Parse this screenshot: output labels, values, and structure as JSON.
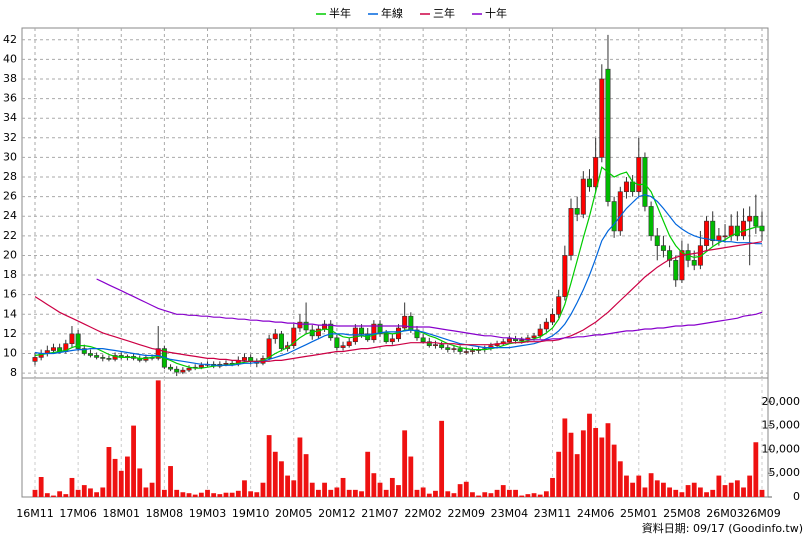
{
  "chart_data": {
    "type": "candlestick",
    "categories": [
      "16M11",
      null,
      null,
      null,
      null,
      null,
      null,
      "17M06",
      null,
      null,
      null,
      null,
      null,
      null,
      "18M01",
      null,
      null,
      null,
      null,
      null,
      null,
      "18M08",
      null,
      null,
      null,
      null,
      null,
      null,
      "19M03",
      null,
      null,
      null,
      null,
      null,
      null,
      "19M10",
      null,
      null,
      null,
      null,
      null,
      null,
      "20M05",
      null,
      null,
      null,
      null,
      null,
      null,
      "20M12",
      null,
      null,
      null,
      null,
      null,
      null,
      "21M07",
      null,
      null,
      null,
      null,
      null,
      null,
      "22M02",
      null,
      null,
      null,
      null,
      null,
      null,
      "22M09",
      null,
      null,
      null,
      null,
      null,
      null,
      "23M04",
      null,
      null,
      null,
      null,
      null,
      null,
      "23M11",
      null,
      null,
      null,
      null,
      null,
      null,
      "24M06",
      null,
      null,
      null,
      null,
      null,
      null,
      "25M01",
      null,
      null,
      null,
      null,
      null,
      null,
      "25M08",
      null,
      null,
      null,
      null,
      null,
      null,
      "26M03",
      null,
      null,
      null,
      null,
      null,
      "26M09"
    ],
    "open": [
      9.2,
      9.6,
      10.0,
      10.3,
      10.6,
      10.2,
      11.0,
      12.0,
      10.5,
      10.0,
      9.8,
      9.6,
      9.5,
      9.4,
      9.8,
      9.6,
      9.7,
      9.5,
      9.3,
      9.6,
      9.5,
      10.5,
      8.6,
      8.4,
      8.1,
      8.3,
      8.5,
      8.6,
      8.8,
      8.9,
      8.7,
      8.9,
      9.0,
      8.9,
      9.3,
      9.6,
      9.2,
      9.0,
      9.5,
      11.5,
      12.0,
      10.5,
      10.8,
      12.6,
      13.2,
      12.4,
      11.8,
      12.5,
      13.0,
      11.6,
      10.6,
      10.8,
      11.2,
      12.6,
      12.0,
      11.4,
      13.0,
      12.0,
      11.2,
      11.5,
      12.6,
      13.8,
      12.4,
      11.6,
      11.2,
      10.8,
      10.9,
      10.6,
      10.4,
      10.5,
      10.2,
      10.2,
      10.3,
      10.4,
      10.5,
      10.8,
      11.0,
      11.2,
      11.5,
      11.3,
      11.4,
      11.6,
      11.8,
      12.5,
      13.2,
      14.0,
      15.8,
      20.0,
      24.8,
      24.2,
      27.8,
      27.0,
      30.0,
      39.0,
      25.5,
      22.5,
      26.5,
      27.5,
      26.5,
      30.0,
      25.0,
      22.0,
      21.0,
      20.5,
      19.5,
      17.5,
      20.5,
      19.5,
      19.0,
      21.0,
      23.5,
      21.5,
      22.0,
      22.0,
      23.0,
      22.0,
      23.5,
      24.0,
      23.0
    ],
    "high": [
      10.0,
      10.4,
      10.8,
      11.0,
      11.0,
      11.4,
      12.8,
      12.4,
      10.9,
      10.4,
      10.1,
      9.9,
      9.8,
      10.1,
      10.1,
      9.9,
      10.0,
      9.8,
      9.9,
      9.9,
      12.8,
      10.8,
      8.9,
      8.7,
      8.6,
      8.8,
      8.9,
      9.1,
      9.2,
      9.2,
      9.2,
      9.3,
      9.3,
      9.7,
      10.0,
      9.9,
      9.5,
      9.8,
      11.9,
      12.5,
      12.3,
      11.2,
      13.0,
      14.0,
      15.2,
      12.9,
      12.9,
      13.4,
      13.4,
      11.9,
      11.2,
      11.6,
      13.0,
      13.0,
      12.6,
      13.4,
      13.4,
      12.4,
      12.0,
      13.0,
      15.2,
      14.2,
      12.8,
      12.0,
      11.6,
      11.3,
      11.2,
      10.9,
      10.8,
      10.8,
      10.6,
      10.6,
      10.7,
      10.8,
      11.1,
      11.3,
      11.5,
      11.8,
      11.8,
      11.7,
      11.9,
      12.1,
      13.0,
      13.6,
      14.6,
      16.5,
      21.0,
      25.8,
      26.0,
      28.6,
      28.8,
      32.0,
      39.5,
      42.5,
      26.0,
      27.0,
      28.0,
      28.2,
      32.0,
      30.5,
      25.5,
      22.8,
      22.0,
      21.0,
      20.0,
      21.5,
      21.2,
      20.5,
      22.5,
      24.0,
      24.5,
      22.8,
      23.2,
      24.2,
      24.5,
      24.8,
      25.0,
      26.2,
      24.5
    ],
    "low": [
      8.8,
      9.3,
      9.7,
      10.0,
      10.0,
      10.0,
      10.6,
      10.2,
      9.8,
      9.6,
      9.4,
      9.2,
      9.2,
      9.2,
      9.4,
      9.3,
      9.3,
      9.1,
      9.1,
      9.3,
      9.3,
      8.4,
      8.2,
      7.7,
      7.9,
      8.1,
      8.3,
      8.4,
      8.6,
      8.5,
      8.5,
      8.7,
      8.7,
      8.7,
      9.0,
      8.9,
      8.6,
      8.8,
      9.3,
      11.0,
      10.2,
      10.2,
      10.5,
      12.2,
      12.0,
      11.4,
      11.5,
      12.2,
      11.3,
      10.3,
      10.3,
      10.6,
      10.9,
      11.6,
      11.2,
      11.1,
      11.7,
      11.0,
      10.9,
      11.2,
      12.3,
      12.1,
      11.3,
      11.0,
      10.6,
      10.5,
      10.4,
      10.1,
      10.1,
      9.9,
      9.9,
      9.9,
      10.0,
      10.1,
      10.3,
      10.5,
      10.8,
      11.0,
      11.0,
      11.0,
      11.1,
      11.3,
      11.5,
      12.2,
      12.9,
      13.6,
      15.4,
      19.5,
      23.5,
      23.8,
      26.5,
      26.5,
      29.5,
      25.0,
      21.8,
      22.0,
      25.8,
      26.0,
      26.0,
      24.5,
      21.5,
      19.5,
      19.8,
      18.8,
      16.8,
      17.2,
      18.8,
      18.5,
      18.6,
      20.5,
      21.0,
      21.0,
      21.3,
      21.5,
      21.5,
      21.6,
      19.0,
      22.2,
      21.5
    ],
    "close": [
      9.6,
      10.0,
      10.3,
      10.6,
      10.2,
      11.0,
      12.0,
      10.5,
      10.0,
      9.8,
      9.6,
      9.5,
      9.4,
      9.8,
      9.6,
      9.7,
      9.5,
      9.3,
      9.6,
      9.5,
      10.5,
      8.6,
      8.4,
      8.1,
      8.3,
      8.5,
      8.6,
      8.8,
      8.9,
      8.7,
      8.9,
      9.0,
      8.9,
      9.3,
      9.6,
      9.2,
      9.0,
      9.5,
      11.5,
      12.0,
      10.5,
      10.8,
      12.6,
      13.2,
      12.4,
      11.8,
      12.5,
      13.0,
      11.6,
      10.6,
      10.8,
      11.2,
      12.6,
      12.0,
      11.4,
      13.0,
      12.0,
      11.2,
      11.5,
      12.6,
      13.8,
      12.4,
      11.6,
      11.2,
      10.8,
      10.9,
      10.6,
      10.4,
      10.5,
      10.2,
      10.2,
      10.3,
      10.4,
      10.5,
      10.8,
      11.0,
      11.2,
      11.5,
      11.3,
      11.4,
      11.6,
      11.8,
      12.5,
      13.2,
      14.0,
      15.8,
      20.0,
      24.8,
      24.2,
      27.8,
      27.0,
      30.0,
      38.0,
      25.5,
      22.5,
      26.5,
      27.5,
      26.5,
      30.0,
      25.0,
      22.0,
      21.0,
      20.5,
      19.5,
      17.5,
      20.5,
      19.5,
      19.0,
      21.0,
      23.5,
      21.5,
      22.0,
      22.0,
      23.0,
      22.0,
      23.5,
      24.0,
      23.0,
      22.5
    ],
    "volume": [
      1500,
      4200,
      800,
      300,
      1200,
      600,
      4000,
      1500,
      2500,
      1800,
      1000,
      2000,
      10500,
      8000,
      5500,
      8500,
      15000,
      6000,
      2000,
      3000,
      24500,
      1500,
      6500,
      1500,
      1000,
      800,
      500,
      900,
      1500,
      800,
      600,
      900,
      900,
      1300,
      3500,
      1200,
      1000,
      3000,
      13000,
      9500,
      7500,
      4500,
      3500,
      12500,
      9000,
      3000,
      1500,
      3000,
      1500,
      2000,
      4000,
      1500,
      1500,
      1200,
      9500,
      5000,
      3000,
      1500,
      4000,
      2500,
      14000,
      8500,
      1500,
      2000,
      700,
      1300,
      16000,
      1200,
      800,
      2700,
      3200,
      1000,
      300,
      1000,
      800,
      1500,
      2500,
      1500,
      1500,
      300,
      600,
      800,
      500,
      1200,
      4000,
      9500,
      16500,
      13500,
      9000,
      14000,
      17500,
      14500,
      12500,
      15500,
      11000,
      7500,
      4500,
      3000,
      4500,
      2000,
      5000,
      3500,
      3000,
      2000,
      1500,
      1000,
      2500,
      3000,
      2000,
      1000,
      1500,
      4500,
      2500,
      3000,
      3500,
      2000,
      4500,
      11500,
      1500
    ],
    "series": [
      {
        "name": "半年",
        "color": "#00cc00",
        "values": [
          9.8,
          9.9,
          10.0,
          10.1,
          10.2,
          10.3,
          10.6,
          10.8,
          10.8,
          10.7,
          10.5,
          10.2,
          9.9,
          9.7,
          9.6,
          9.6,
          9.6,
          9.5,
          9.5,
          9.6,
          9.7,
          9.5,
          9.3,
          9.0,
          8.8,
          8.6,
          8.5,
          8.5,
          8.6,
          8.7,
          8.8,
          8.8,
          8.9,
          9.0,
          9.1,
          9.2,
          9.2,
          9.3,
          9.6,
          10.0,
          10.3,
          10.6,
          11.1,
          11.6,
          12.0,
          12.2,
          12.3,
          12.5,
          12.4,
          12.0,
          11.7,
          11.6,
          11.7,
          11.8,
          11.7,
          11.9,
          12.1,
          12.1,
          12.0,
          12.1,
          12.4,
          12.4,
          12.3,
          12.1,
          11.8,
          11.6,
          11.3,
          11.0,
          10.8,
          10.6,
          10.5,
          10.4,
          10.4,
          10.4,
          10.5,
          10.6,
          10.8,
          11.0,
          11.1,
          11.2,
          11.3,
          11.5,
          11.7,
          12.1,
          12.6,
          13.5,
          15.0,
          17.2,
          19.5,
          21.8,
          24.0,
          26.5,
          29.0,
          28.5,
          28.0,
          28.3,
          28.5,
          27.5,
          27.2,
          27.3,
          26.5,
          25.0,
          23.5,
          22.0,
          21.0,
          20.3,
          20.0,
          19.8,
          19.9,
          20.4,
          20.9,
          21.3,
          21.6,
          22.0,
          22.3,
          22.5,
          22.7,
          22.9,
          22.9
        ]
      },
      {
        "name": "年線",
        "color": "#0066dd",
        "values": [
          10.1,
          10.0,
          10.0,
          10.0,
          10.1,
          10.2,
          10.3,
          10.4,
          10.4,
          10.5,
          10.5,
          10.5,
          10.4,
          10.3,
          10.2,
          10.1,
          10.0,
          9.9,
          9.8,
          9.8,
          9.8,
          9.6,
          9.4,
          9.3,
          9.2,
          9.1,
          9.0,
          8.9,
          8.9,
          8.8,
          8.8,
          8.8,
          8.8,
          8.9,
          9.0,
          9.0,
          9.1,
          9.2,
          9.4,
          9.6,
          9.8,
          10.0,
          10.3,
          10.6,
          10.9,
          11.2,
          11.5,
          11.8,
          12.0,
          12.0,
          12.0,
          11.9,
          11.9,
          11.9,
          11.9,
          12.0,
          12.1,
          12.2,
          12.2,
          12.2,
          12.3,
          12.4,
          12.3,
          12.2,
          12.0,
          11.8,
          11.6,
          11.4,
          11.2,
          11.0,
          10.9,
          10.8,
          10.7,
          10.6,
          10.6,
          10.6,
          10.6,
          10.6,
          10.7,
          10.8,
          10.9,
          11.0,
          11.2,
          11.5,
          11.8,
          12.3,
          13.0,
          14.0,
          15.2,
          16.5,
          18.0,
          19.7,
          21.5,
          22.5,
          23.2,
          24.0,
          24.8,
          25.4,
          26.0,
          26.2,
          26.0,
          25.5,
          24.8,
          24.0,
          23.2,
          22.7,
          22.3,
          22.0,
          21.8,
          21.7,
          21.6,
          21.5,
          21.4,
          21.4,
          21.3,
          21.3,
          21.3,
          21.2,
          21.2
        ]
      },
      {
        "name": "三年",
        "color": "#cc0044",
        "values": [
          15.8,
          15.4,
          15.0,
          14.6,
          14.2,
          13.9,
          13.6,
          13.3,
          13.0,
          12.7,
          12.4,
          12.1,
          11.9,
          11.7,
          11.5,
          11.3,
          11.1,
          10.9,
          10.7,
          10.5,
          10.4,
          10.2,
          10.1,
          10.0,
          9.9,
          9.8,
          9.7,
          9.6,
          9.5,
          9.5,
          9.4,
          9.4,
          9.3,
          9.3,
          9.2,
          9.2,
          9.2,
          9.2,
          9.2,
          9.3,
          9.3,
          9.4,
          9.5,
          9.6,
          9.7,
          9.8,
          9.9,
          10.0,
          10.1,
          10.2,
          10.2,
          10.3,
          10.4,
          10.5,
          10.5,
          10.6,
          10.7,
          10.8,
          10.8,
          10.9,
          11.0,
          11.1,
          11.1,
          11.1,
          11.1,
          11.1,
          11.0,
          11.0,
          11.0,
          10.9,
          10.9,
          10.9,
          10.9,
          10.9,
          10.9,
          11.0,
          11.0,
          11.1,
          11.1,
          11.1,
          11.2,
          11.2,
          11.2,
          11.3,
          11.3,
          11.4,
          11.6,
          11.8,
          12.1,
          12.4,
          12.8,
          13.2,
          13.7,
          14.2,
          14.8,
          15.4,
          16.0,
          16.6,
          17.2,
          17.8,
          18.3,
          18.8,
          19.2,
          19.6,
          19.8,
          20.0,
          20.1,
          20.2,
          20.3,
          20.5,
          20.6,
          20.7,
          20.8,
          20.9,
          21.0,
          21.1,
          21.2,
          21.3,
          21.4
        ]
      },
      {
        "name": "十年",
        "color": "#8800cc",
        "values": [
          null,
          null,
          null,
          null,
          null,
          null,
          null,
          null,
          null,
          null,
          17.6,
          17.3,
          17.0,
          16.7,
          16.4,
          16.1,
          15.8,
          15.5,
          15.2,
          14.9,
          14.6,
          14.4,
          14.2,
          14.0,
          14.0,
          13.9,
          13.9,
          13.8,
          13.8,
          13.7,
          13.7,
          13.6,
          13.6,
          13.5,
          13.5,
          13.4,
          13.4,
          13.3,
          13.3,
          13.2,
          13.2,
          13.1,
          13.1,
          13.0,
          13.0,
          13.0,
          12.9,
          12.9,
          12.9,
          12.8,
          12.8,
          12.8,
          12.8,
          12.8,
          12.8,
          12.8,
          12.8,
          12.8,
          12.8,
          12.8,
          12.8,
          12.7,
          12.7,
          12.7,
          12.7,
          12.6,
          12.5,
          12.4,
          12.3,
          12.2,
          12.1,
          12.0,
          11.9,
          11.8,
          11.8,
          11.7,
          11.6,
          11.6,
          11.5,
          11.5,
          11.4,
          11.4,
          11.4,
          11.4,
          11.5,
          11.5,
          11.6,
          11.6,
          11.7,
          11.7,
          11.8,
          11.9,
          11.9,
          12.0,
          12.1,
          12.2,
          12.3,
          12.3,
          12.4,
          12.5,
          12.5,
          12.6,
          12.6,
          12.7,
          12.8,
          12.8,
          12.9,
          12.9,
          13.0,
          13.1,
          13.2,
          13.3,
          13.4,
          13.5,
          13.6,
          13.8,
          13.9,
          14.0,
          14.2
        ]
      }
    ],
    "up_color": "#ff0000",
    "down_color": "#00bb00",
    "volume_color": "#ee1111",
    "ylim": [
      7.5,
      43.2
    ],
    "yticks": [
      8,
      10,
      12,
      14,
      16,
      18,
      20,
      22,
      24,
      26,
      28,
      30,
      32,
      34,
      36,
      38,
      40,
      42
    ],
    "y2lim": [
      0,
      25000
    ],
    "y2ticks": [
      0,
      {
        "value": 5000,
        "label": "5,000"
      },
      {
        "value": 10000,
        "label": "10,000"
      },
      {
        "value": 15000,
        "label": "15,000"
      },
      {
        "value": 20000,
        "label": "20,000"
      }
    ],
    "grid": true,
    "note": "資料日期: 09/17 (Goodinfo.tw)"
  }
}
